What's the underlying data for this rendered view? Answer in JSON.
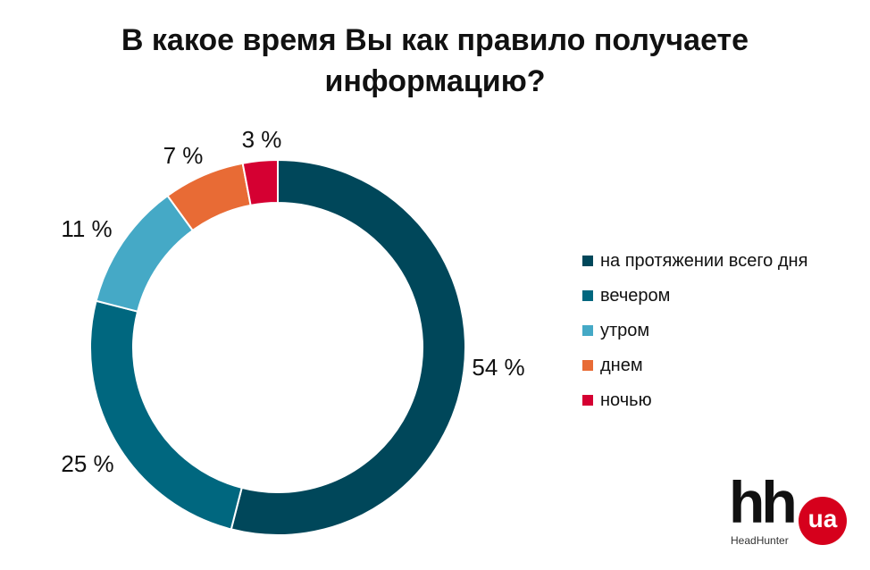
{
  "chart_data": {
    "type": "pie",
    "title": "В какое время Вы как правило получаете информацию?",
    "title_lines": [
      "В какое время Вы как правило получаете",
      "информацию?"
    ],
    "series": [
      {
        "name": "на протяжении всего дня",
        "value": 54,
        "label": "54 %",
        "color": "#00475a"
      },
      {
        "name": "вечером",
        "value": 25,
        "label": "25 %",
        "color": "#00677f"
      },
      {
        "name": "утром",
        "value": 11,
        "label": "11 %",
        "color": "#45a9c6"
      },
      {
        "name": "днем",
        "value": 7,
        "label": "7 %",
        "color": "#e86b35"
      },
      {
        "name": "ночью",
        "value": 3,
        "label": "3 %",
        "color": "#d50032"
      }
    ],
    "legend_position": "right",
    "donut": true
  },
  "logo": {
    "mark": "hh",
    "badge": "ua",
    "caption": "HeadHunter"
  }
}
